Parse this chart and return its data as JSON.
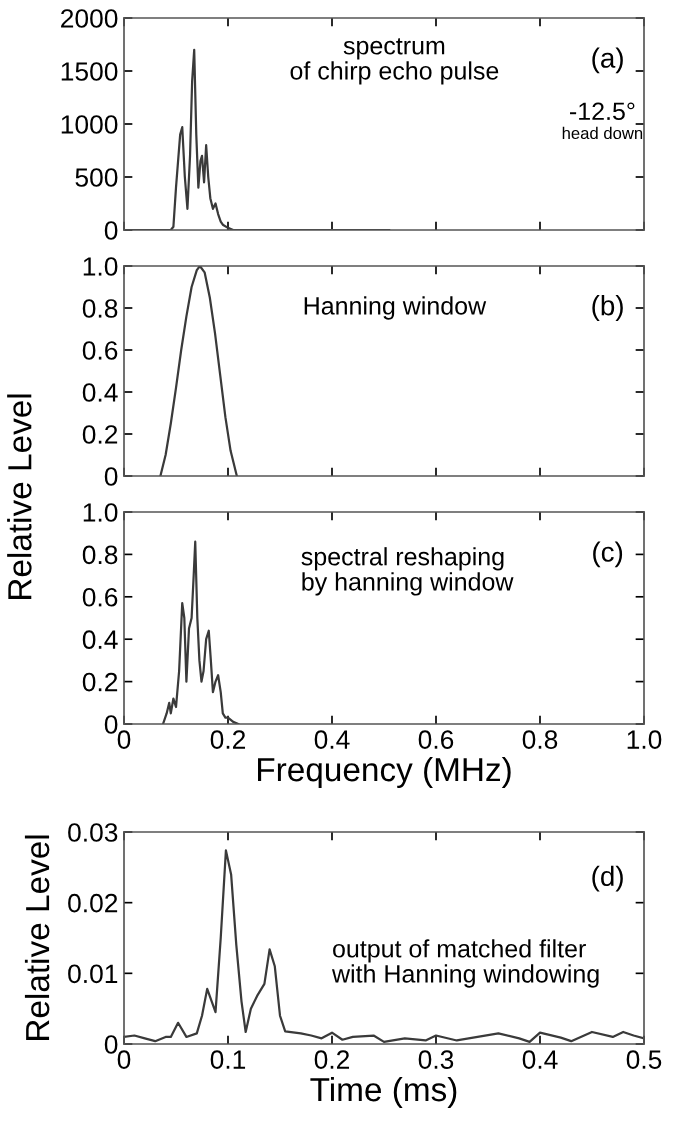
{
  "chart_data": [
    {
      "type": "line",
      "xlim": [
        0,
        1
      ],
      "xticks": [
        0,
        0.2,
        0.4,
        0.6,
        0.8,
        1
      ],
      "ylim": [
        0,
        2000
      ],
      "yticks": [
        0,
        500,
        1000,
        1500,
        2000
      ],
      "tick_labels": "y",
      "annotations": [
        "spectrum\nof chirp echo pulse",
        "(a)",
        "-12.5°",
        "head down"
      ],
      "series": [
        {
          "color": "#3a3a3a",
          "x": [
            0,
            0.09,
            0.095,
            0.1,
            0.108,
            0.112,
            0.117,
            0.122,
            0.127,
            0.131,
            0.135,
            0.139,
            0.143,
            0.147,
            0.15,
            0.154,
            0.158,
            0.162,
            0.166,
            0.171,
            0.176,
            0.181,
            0.186,
            0.19,
            0.2,
            0.21,
            0.51
          ],
          "values": [
            0,
            0,
            30,
            400,
            900,
            970,
            500,
            200,
            700,
            1400,
            1700,
            900,
            400,
            650,
            700,
            450,
            800,
            500,
            300,
            200,
            250,
            150,
            80,
            50,
            20,
            0,
            0
          ]
        }
      ]
    },
    {
      "type": "line",
      "xlim": [
        0,
        1
      ],
      "xticks": [
        0,
        0.2,
        0.4,
        0.6,
        0.8,
        1
      ],
      "ylim": [
        0,
        1
      ],
      "yticks": [
        0,
        0.2,
        0.4,
        0.6,
        0.8,
        {
          "value": 1,
          "label": "1.0"
        }
      ],
      "tick_labels": "y",
      "ylabel": "Relative Level",
      "annotations": [
        "Hanning window",
        "(b)"
      ],
      "series": [
        {
          "color": "#3a3a3a",
          "x": [
            0.07,
            0.08,
            0.09,
            0.1,
            0.11,
            0.12,
            0.13,
            0.14,
            0.146,
            0.155,
            0.165,
            0.175,
            0.185,
            0.195,
            0.205,
            0.217
          ],
          "values": [
            0,
            0.1,
            0.25,
            0.42,
            0.6,
            0.76,
            0.9,
            0.98,
            1.0,
            0.97,
            0.85,
            0.68,
            0.48,
            0.28,
            0.12,
            0
          ]
        }
      ]
    },
    {
      "type": "line",
      "xlim": [
        0,
        1
      ],
      "xticks": [
        0,
        0.2,
        0.4,
        0.6,
        0.8,
        {
          "value": 1,
          "label": "1.0"
        }
      ],
      "ylim": [
        0,
        1
      ],
      "yticks": [
        0,
        0.2,
        0.4,
        0.6,
        0.8,
        {
          "value": 1,
          "label": "1.0"
        }
      ],
      "xlabel": "Frequency (MHz)",
      "annotations": [
        "spectral reshaping\nby hanning window",
        "(c)"
      ],
      "series": [
        {
          "color": "#3a3a3a",
          "x": [
            0.075,
            0.082,
            0.087,
            0.09,
            0.095,
            0.1,
            0.106,
            0.112,
            0.116,
            0.12,
            0.125,
            0.13,
            0.134,
            0.137,
            0.141,
            0.145,
            0.149,
            0.153,
            0.158,
            0.163,
            0.167,
            0.171,
            0.176,
            0.181,
            0.186,
            0.19,
            0.195,
            0.2,
            0.21,
            0.22
          ],
          "values": [
            0,
            0.05,
            0.1,
            0.05,
            0.12,
            0.08,
            0.25,
            0.57,
            0.5,
            0.2,
            0.45,
            0.5,
            0.7,
            0.86,
            0.5,
            0.3,
            0.2,
            0.25,
            0.4,
            0.44,
            0.3,
            0.15,
            0.2,
            0.23,
            0.15,
            0.05,
            0.03,
            0.03,
            0.01,
            0
          ]
        }
      ]
    },
    {
      "type": "line",
      "xlim": [
        0,
        0.5
      ],
      "xticks": [
        0,
        0.1,
        0.2,
        0.3,
        0.4,
        0.5
      ],
      "ylim": [
        0,
        0.03
      ],
      "yticks": [
        0,
        0.01,
        0.02,
        0.03
      ],
      "xlabel": "Time (ms)",
      "ylabel": "Relative Level",
      "annotations": [
        "(d)",
        "output of matched filter\nwith Hanning windowing"
      ],
      "series": [
        {
          "color": "#3a3a3a",
          "x": [
            0,
            0.01,
            0.02,
            0.03,
            0.04,
            0.045,
            0.052,
            0.06,
            0.07,
            0.075,
            0.08,
            0.088,
            0.093,
            0.098,
            0.103,
            0.108,
            0.113,
            0.117,
            0.122,
            0.128,
            0.135,
            0.14,
            0.145,
            0.15,
            0.155,
            0.17,
            0.18,
            0.19,
            0.2,
            0.21,
            0.22,
            0.24,
            0.25,
            0.27,
            0.29,
            0.3,
            0.32,
            0.34,
            0.36,
            0.38,
            0.39,
            0.4,
            0.42,
            0.43,
            0.45,
            0.47,
            0.48,
            0.49,
            0.5
          ],
          "values": [
            0.001,
            0.0012,
            0.0008,
            0.0004,
            0.001,
            0.001,
            0.003,
            0.001,
            0.0015,
            0.004,
            0.0078,
            0.0045,
            0.015,
            0.0274,
            0.024,
            0.014,
            0.006,
            0.0017,
            0.005,
            0.0068,
            0.0085,
            0.0134,
            0.011,
            0.004,
            0.0018,
            0.0015,
            0.0012,
            0.0008,
            0.0016,
            0.0006,
            0.001,
            0.0012,
            0.0003,
            0.0008,
            0.0005,
            0.0012,
            0.0005,
            0.001,
            0.0015,
            0.0008,
            0.0003,
            0.0016,
            0.0009,
            0.0004,
            0.0017,
            0.001,
            0.0017,
            0.0012,
            0.0008
          ]
        }
      ]
    }
  ]
}
